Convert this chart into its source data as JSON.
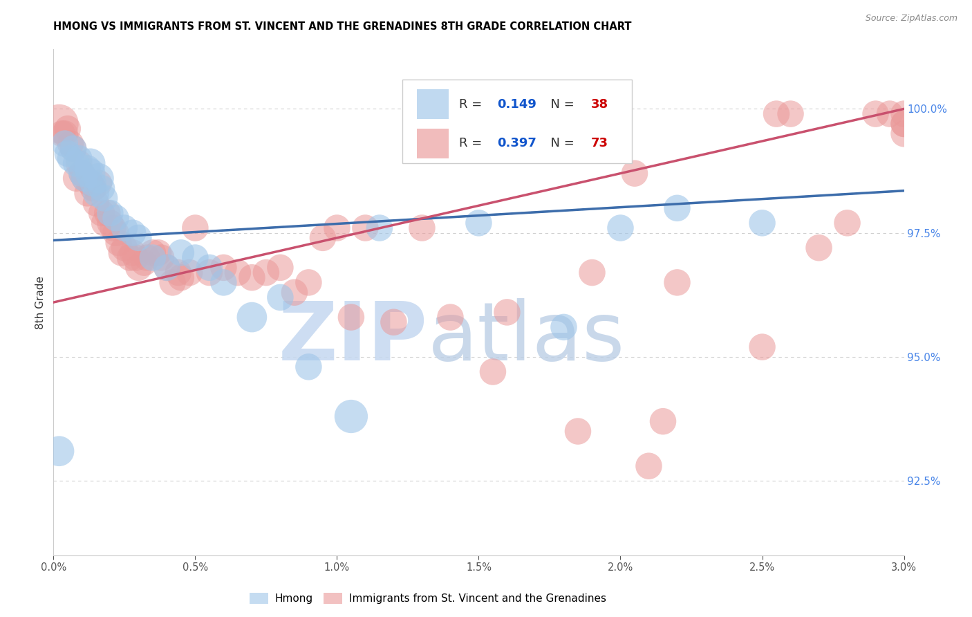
{
  "title": "HMONG VS IMMIGRANTS FROM ST. VINCENT AND THE GRENADINES 8TH GRADE CORRELATION CHART",
  "source": "Source: ZipAtlas.com",
  "ylabel": "8th Grade",
  "right_yticks": [
    92.5,
    95.0,
    97.5,
    100.0
  ],
  "right_ytick_labels": [
    "92.5%",
    "95.0%",
    "97.5%",
    "100.0%"
  ],
  "xlim": [
    0.0,
    3.0
  ],
  "ylim": [
    91.0,
    101.2
  ],
  "hmong_R": 0.149,
  "hmong_N": 38,
  "svg_R": 0.397,
  "svg_N": 73,
  "hmong_color": "#9fc5e8",
  "svg_color": "#ea9999",
  "hmong_line_color": "#3d6dab",
  "svg_line_color": "#c9516e",
  "dashed_line_color": "#a8c8e8",
  "watermark_zip_color": "#c5d8f0",
  "watermark_atlas_color": "#b8cce4",
  "grid_color": "#d0d0d0",
  "legend_hmong": "Hmong",
  "legend_svg": "Immigrants from St. Vincent and the Grenadines",
  "legend_R_color": "#1155cc",
  "legend_N_color": "#cc0000",
  "hmong_x": [
    0.02,
    0.04,
    0.05,
    0.06,
    0.07,
    0.08,
    0.09,
    0.1,
    0.11,
    0.12,
    0.13,
    0.13,
    0.14,
    0.15,
    0.16,
    0.17,
    0.18,
    0.2,
    0.22,
    0.25,
    0.28,
    0.3,
    0.35,
    0.4,
    0.45,
    0.5,
    0.55,
    0.6,
    0.7,
    0.8,
    0.9,
    1.05,
    1.15,
    1.5,
    1.8,
    2.0,
    2.2,
    2.5
  ],
  "hmong_y": [
    93.1,
    99.3,
    99.1,
    99.0,
    99.2,
    98.9,
    99.0,
    98.7,
    98.6,
    98.8,
    98.7,
    98.9,
    98.5,
    98.3,
    98.6,
    98.4,
    98.2,
    97.9,
    97.8,
    97.6,
    97.5,
    97.4,
    97.0,
    96.8,
    97.1,
    97.0,
    96.8,
    96.5,
    95.8,
    96.2,
    94.8,
    93.8,
    97.6,
    97.7,
    95.6,
    97.6,
    98.0,
    97.7
  ],
  "hmong_sizes": [
    18,
    14,
    14,
    14,
    14,
    14,
    14,
    14,
    14,
    14,
    18,
    18,
    14,
    14,
    18,
    14,
    14,
    14,
    14,
    14,
    14,
    14,
    14,
    14,
    14,
    14,
    14,
    14,
    18,
    14,
    14,
    22,
    14,
    14,
    14,
    14,
    14,
    14
  ],
  "svg_x": [
    0.02,
    0.03,
    0.04,
    0.05,
    0.06,
    0.07,
    0.08,
    0.09,
    0.1,
    0.11,
    0.12,
    0.13,
    0.14,
    0.15,
    0.16,
    0.17,
    0.18,
    0.19,
    0.2,
    0.21,
    0.22,
    0.23,
    0.24,
    0.25,
    0.27,
    0.28,
    0.29,
    0.3,
    0.32,
    0.33,
    0.35,
    0.37,
    0.38,
    0.4,
    0.42,
    0.44,
    0.45,
    0.48,
    0.5,
    0.55,
    0.6,
    0.65,
    0.7,
    0.75,
    0.8,
    0.85,
    0.9,
    0.95,
    1.0,
    1.05,
    1.1,
    1.2,
    1.3,
    1.4,
    1.55,
    1.6,
    1.85,
    1.9,
    2.05,
    2.1,
    2.15,
    2.2,
    2.5,
    2.55,
    2.6,
    2.7,
    2.8,
    2.9,
    2.95,
    3.0,
    3.0,
    3.0,
    3.0
  ],
  "svg_y": [
    99.7,
    99.5,
    99.5,
    99.6,
    99.3,
    99.2,
    98.6,
    98.9,
    98.7,
    98.6,
    98.3,
    98.5,
    98.4,
    98.1,
    98.5,
    97.9,
    97.7,
    97.9,
    97.7,
    97.6,
    97.5,
    97.3,
    97.1,
    97.2,
    97.0,
    97.1,
    97.0,
    96.8,
    96.9,
    97.0,
    97.1,
    97.1,
    97.0,
    96.8,
    96.5,
    96.7,
    96.6,
    96.7,
    97.6,
    96.7,
    96.8,
    96.7,
    96.6,
    96.7,
    96.8,
    96.3,
    96.5,
    97.4,
    97.6,
    95.8,
    97.6,
    95.7,
    97.6,
    95.8,
    94.7,
    95.9,
    93.5,
    96.7,
    98.7,
    92.8,
    93.7,
    96.5,
    95.2,
    99.9,
    99.9,
    97.2,
    97.7,
    99.9,
    99.9,
    99.9,
    99.7,
    99.7,
    99.5
  ],
  "svg_sizes": [
    30,
    14,
    14,
    14,
    14,
    14,
    14,
    14,
    14,
    14,
    14,
    14,
    14,
    14,
    14,
    14,
    14,
    14,
    14,
    14,
    14,
    14,
    14,
    14,
    14,
    14,
    14,
    14,
    14,
    14,
    14,
    14,
    14,
    14,
    14,
    14,
    14,
    14,
    14,
    14,
    14,
    14,
    14,
    14,
    14,
    14,
    14,
    14,
    14,
    14,
    14,
    14,
    14,
    14,
    14,
    14,
    14,
    14,
    14,
    14,
    14,
    14,
    14,
    14,
    14,
    14,
    14,
    14,
    14,
    14,
    14,
    14,
    14
  ],
  "hmong_line_x0": 0.0,
  "hmong_line_y0": 97.35,
  "hmong_line_x1": 3.0,
  "hmong_line_y1": 98.35,
  "svg_line_x0": 0.0,
  "svg_line_y0": 96.1,
  "svg_line_x1": 3.0,
  "svg_line_y1": 100.0,
  "dashed_line_x0": 0.0,
  "dashed_line_y0": 97.35,
  "dashed_line_x1": 3.0,
  "dashed_line_y1": 98.35
}
